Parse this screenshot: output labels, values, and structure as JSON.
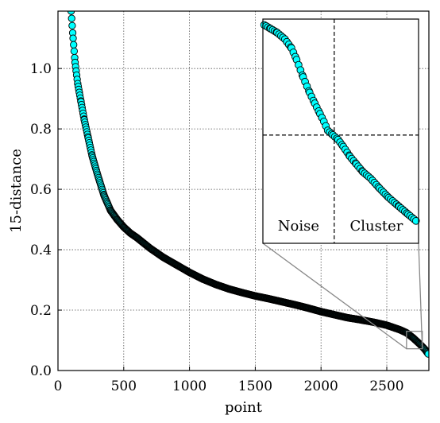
{
  "chart_data": {
    "type": "scatter",
    "title": "",
    "xlabel": "point",
    "ylabel": "15-distance",
    "xlim": [
      0,
      2820
    ],
    "ylim": [
      0,
      1.19
    ],
    "x_ticks": [
      0,
      500,
      1000,
      1500,
      2000,
      2500
    ],
    "y_ticks": [
      0.0,
      0.2,
      0.4,
      0.6,
      0.8,
      1.0
    ],
    "x_tick_labels": [
      "0",
      "500",
      "1000",
      "1500",
      "2000",
      "2500"
    ],
    "y_tick_labels": [
      "0.0",
      "0.2",
      "0.4",
      "0.6",
      "0.8",
      "1.0"
    ],
    "grid": true,
    "series": [
      {
        "marker_face": "#00ffff",
        "marker_edge": "#000000",
        "points": [
          [
            100,
            1.19
          ],
          [
            115,
            1.1
          ],
          [
            130,
            1.02
          ],
          [
            150,
            0.95
          ],
          [
            175,
            0.89
          ],
          [
            200,
            0.83
          ],
          [
            230,
            0.77
          ],
          [
            260,
            0.71
          ],
          [
            300,
            0.65
          ],
          [
            350,
            0.58
          ],
          [
            400,
            0.53
          ],
          [
            450,
            0.5
          ],
          [
            500,
            0.475
          ],
          [
            550,
            0.455
          ],
          [
            600,
            0.44
          ],
          [
            700,
            0.405
          ],
          [
            800,
            0.375
          ],
          [
            900,
            0.35
          ],
          [
            1000,
            0.325
          ],
          [
            1100,
            0.303
          ],
          [
            1200,
            0.285
          ],
          [
            1300,
            0.27
          ],
          [
            1400,
            0.258
          ],
          [
            1500,
            0.247
          ],
          [
            1600,
            0.238
          ],
          [
            1700,
            0.228
          ],
          [
            1800,
            0.218
          ],
          [
            1900,
            0.207
          ],
          [
            2000,
            0.195
          ],
          [
            2100,
            0.185
          ],
          [
            2200,
            0.175
          ],
          [
            2300,
            0.168
          ],
          [
            2400,
            0.16
          ],
          [
            2500,
            0.15
          ],
          [
            2600,
            0.135
          ],
          [
            2650,
            0.125
          ],
          [
            2700,
            0.108
          ],
          [
            2750,
            0.088
          ],
          [
            2790,
            0.07
          ],
          [
            2815,
            0.055
          ]
        ]
      }
    ],
    "inset": {
      "xlim": [
        2650,
        2770
      ],
      "ylim": [
        0.072,
        0.13
      ],
      "threshold_x": 2705,
      "threshold_y": 0.1,
      "labels": [
        "Noise",
        "Cluster"
      ],
      "points": [
        [
          2651,
          0.1285
        ],
        [
          2656,
          0.1275
        ],
        [
          2661,
          0.1265
        ],
        [
          2667,
          0.1248
        ],
        [
          2672,
          0.1225
        ],
        [
          2676,
          0.1195
        ],
        [
          2681,
          0.115
        ],
        [
          2686,
          0.111
        ],
        [
          2690,
          0.1082
        ],
        [
          2694,
          0.1055
        ],
        [
          2697,
          0.1035
        ],
        [
          2700,
          0.1012
        ],
        [
          2704,
          0.1
        ],
        [
          2708,
          0.0988
        ],
        [
          2712,
          0.097
        ],
        [
          2717,
          0.0945
        ],
        [
          2722,
          0.0925
        ],
        [
          2727,
          0.0905
        ],
        [
          2733,
          0.0888
        ],
        [
          2740,
          0.0862
        ],
        [
          2747,
          0.0838
        ],
        [
          2755,
          0.0815
        ],
        [
          2762,
          0.0795
        ],
        [
          2768,
          0.0778
        ]
      ]
    }
  }
}
